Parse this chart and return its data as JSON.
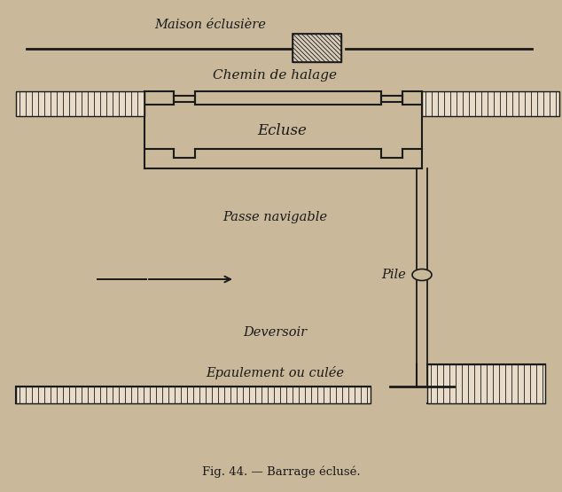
{
  "bg_color": "#c9b99a",
  "line_color": "#1a1a1a",
  "title": "Fig. 44. — Barrage éclusé.",
  "labels": {
    "maison": "Maison éclusière",
    "chemin": "Chemin de halage",
    "ecluse": "Ecluse",
    "passe": "Passe navigable",
    "pile": "Pile",
    "deversoir": "Deversoir",
    "epaulement": "Epaulement ou culée"
  },
  "figsize": [
    6.34,
    5.55
  ],
  "dpi": 100
}
